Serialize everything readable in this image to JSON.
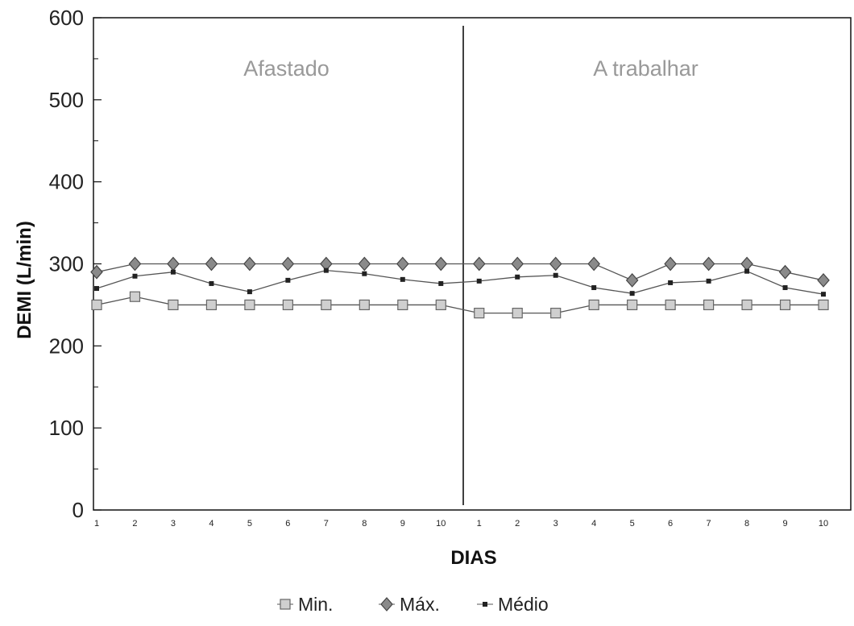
{
  "chart_data": {
    "type": "line",
    "xlabel": "DIAS",
    "ylabel": "DEMI (L/min)",
    "ylim": [
      0,
      600
    ],
    "yticks": [
      "0",
      "100",
      "200",
      "300",
      "400",
      "500",
      "600"
    ],
    "categories": [
      "1",
      "2",
      "3",
      "4",
      "5",
      "6",
      "7",
      "8",
      "9",
      "10",
      "1",
      "2",
      "3",
      "4",
      "5",
      "6",
      "7",
      "8",
      "9",
      "10"
    ],
    "regions": [
      {
        "label": "Afastado",
        "days": "1-10"
      },
      {
        "label": "A trabalhar",
        "days": "1-10"
      }
    ],
    "series": [
      {
        "name": "Min.",
        "marker": "square",
        "values": [
          250,
          260,
          250,
          250,
          250,
          250,
          250,
          250,
          250,
          250,
          240,
          240,
          240,
          250,
          250,
          250,
          250,
          250,
          250,
          250
        ]
      },
      {
        "name": "Máx.",
        "marker": "diamond",
        "values": [
          290,
          300,
          300,
          300,
          300,
          300,
          300,
          300,
          300,
          300,
          300,
          300,
          300,
          300,
          280,
          300,
          300,
          300,
          290,
          280
        ]
      },
      {
        "name": "Médio",
        "marker": "dot",
        "values": [
          270,
          285,
          290,
          276,
          266,
          280,
          292,
          288,
          281,
          276,
          279,
          284,
          286,
          271,
          264,
          277,
          279,
          291,
          271,
          263
        ]
      }
    ],
    "legend_position": "bottom",
    "grid": false,
    "colors": {
      "axis": "#111111",
      "max_fill": "#8a8a8a",
      "min_fill": "#cfcfcf",
      "line": "#555555",
      "text": "#222222",
      "region_text": "#999999"
    }
  }
}
